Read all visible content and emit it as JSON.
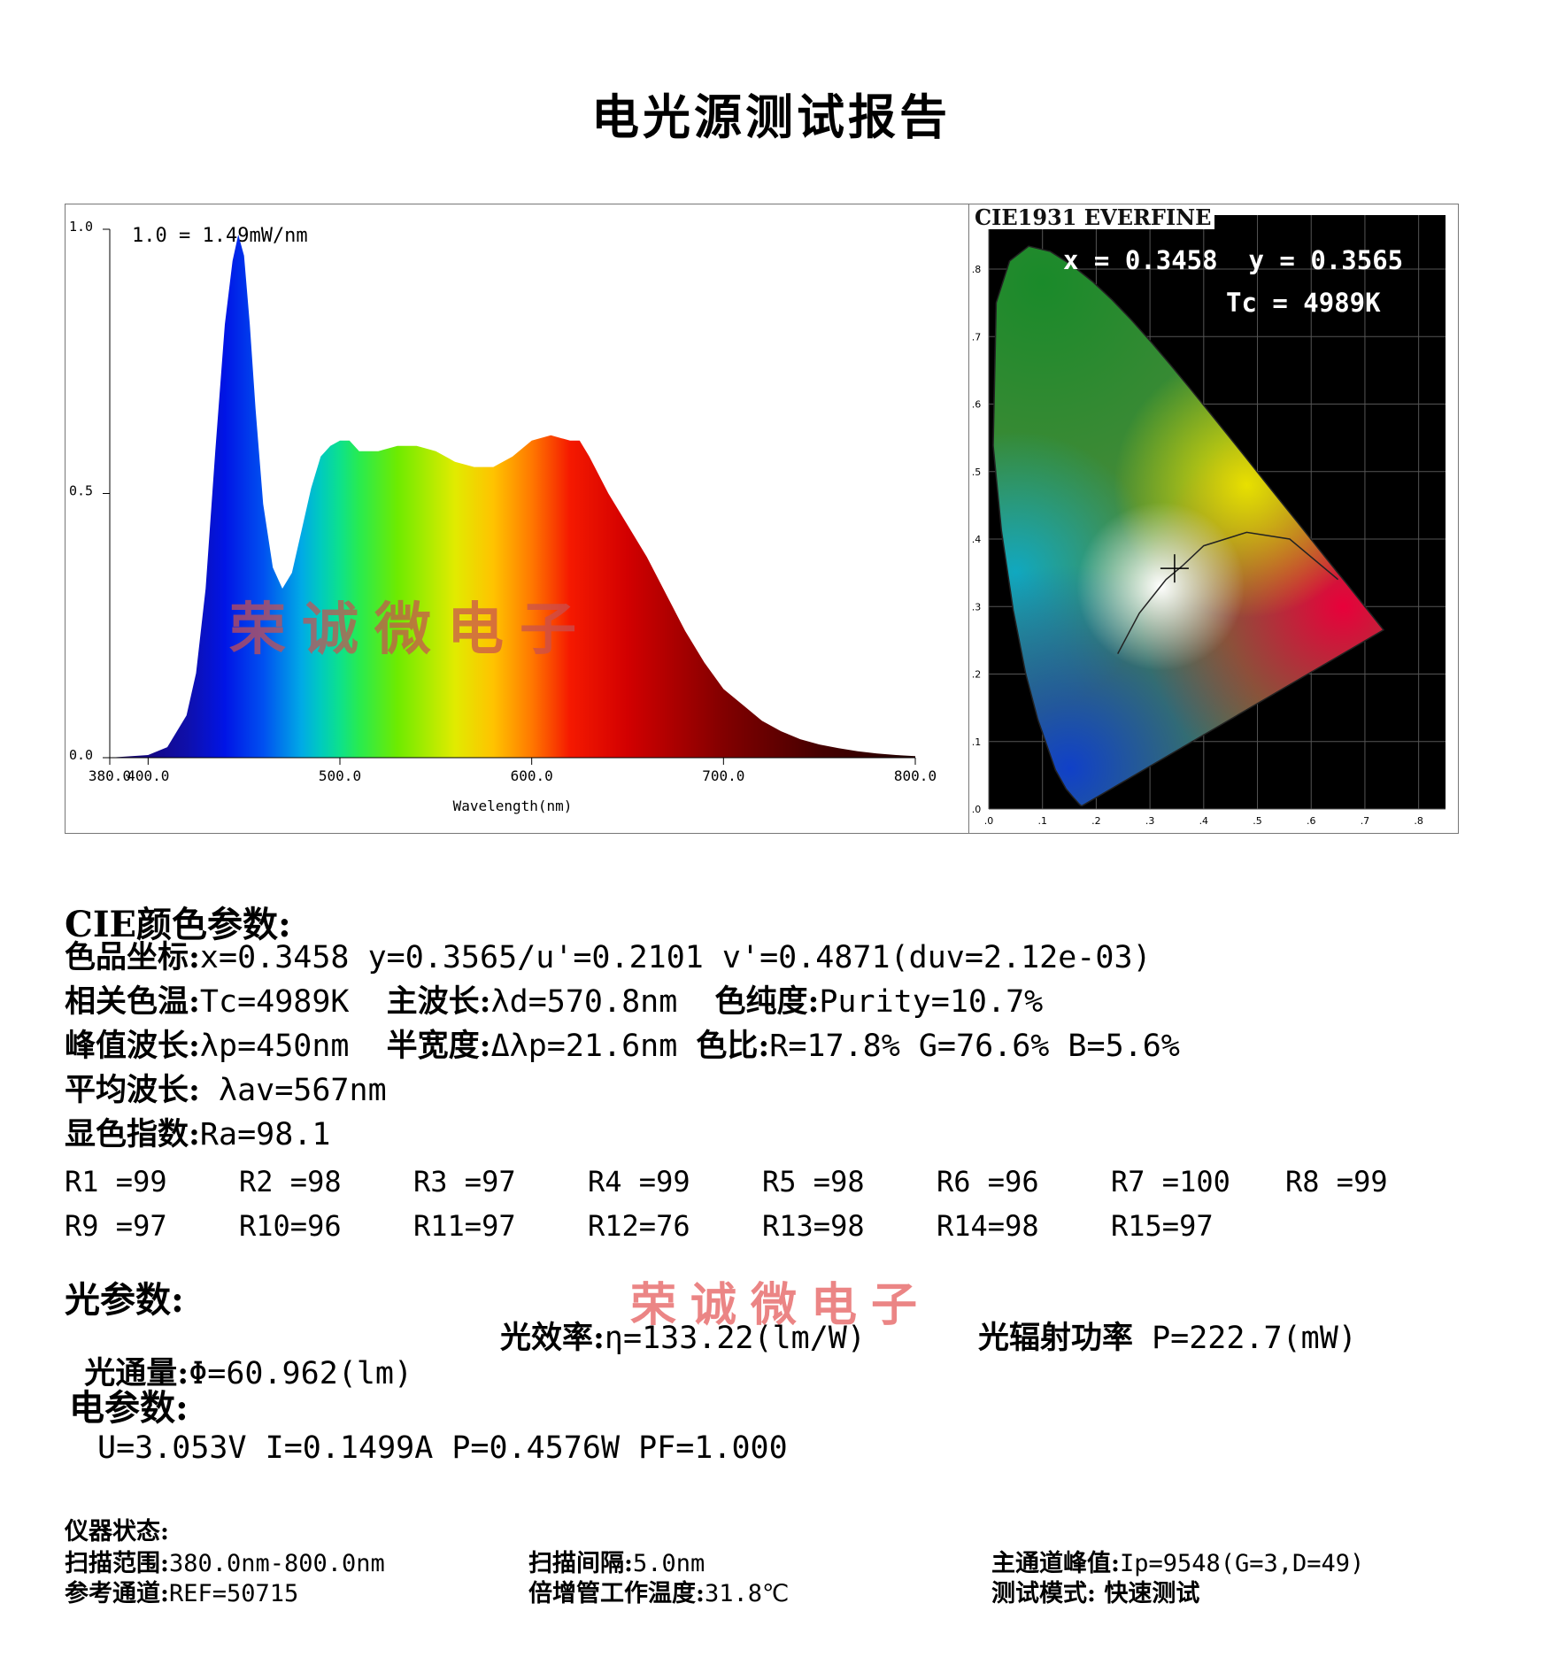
{
  "page": {
    "title": "电光源测试报告"
  },
  "spectrum": {
    "scale_note": "1.0 = 1.49mW/nm",
    "y_ticks": [
      "1.0",
      "0.5",
      "0.0"
    ],
    "x_ticks": [
      "380.0",
      "400.0",
      "500.0",
      "600.0",
      "700.0",
      "800.0"
    ],
    "xlabel": "Wavelength(nm)",
    "watermark": "荣诚微电子"
  },
  "chart_data": {
    "type": "area",
    "title": "",
    "xlabel": "Wavelength(nm)",
    "ylabel": "",
    "xlim": [
      380,
      800
    ],
    "ylim": [
      0,
      1.0
    ],
    "x": [
      380,
      400,
      410,
      420,
      425,
      430,
      435,
      440,
      444,
      447,
      450,
      453,
      456,
      460,
      465,
      470,
      475,
      480,
      485,
      490,
      495,
      500,
      505,
      510,
      520,
      530,
      540,
      550,
      560,
      570,
      580,
      590,
      600,
      610,
      620,
      625,
      630,
      640,
      650,
      660,
      670,
      680,
      690,
      700,
      710,
      720,
      730,
      740,
      750,
      760,
      770,
      780,
      790,
      800
    ],
    "y": [
      0.0,
      0.005,
      0.02,
      0.08,
      0.16,
      0.32,
      0.58,
      0.82,
      0.94,
      0.99,
      0.95,
      0.82,
      0.66,
      0.48,
      0.36,
      0.32,
      0.35,
      0.43,
      0.51,
      0.57,
      0.59,
      0.6,
      0.6,
      0.58,
      0.58,
      0.59,
      0.59,
      0.58,
      0.56,
      0.55,
      0.55,
      0.57,
      0.6,
      0.61,
      0.6,
      0.6,
      0.57,
      0.5,
      0.44,
      0.38,
      0.31,
      0.24,
      0.18,
      0.13,
      0.1,
      0.07,
      0.05,
      0.035,
      0.025,
      0.018,
      0.012,
      0.008,
      0.005,
      0.003
    ]
  },
  "cie": {
    "header": "CIE1931 EVERFINE",
    "coords": "x = 0.3458  y = 0.3565",
    "tc": "Tc = 4989K",
    "point_x": 0.3458,
    "point_y": 0.3565,
    "axis_ticks": [
      ".0",
      ".1",
      ".2",
      ".3",
      ".4",
      ".5",
      ".6",
      ".7",
      ".8"
    ]
  },
  "cie_params": {
    "heading": "CIE颜色参数:",
    "coord_label": "色品坐标:",
    "coord_value": "x=0.3458 y=0.3565/u'=0.2101 v'=0.4871(duv=2.12e-03)",
    "tc_label": "相关色温:",
    "tc_value": "Tc=4989K  ",
    "dom_label": "主波长:",
    "dom_value": "λd=570.8nm  ",
    "purity_label": "色纯度:",
    "purity_value": "Purity=10.7%",
    "peak_label": "峰值波长:",
    "peak_value": "λp=450nm  ",
    "fwhm_label": "半宽度:",
    "fwhm_value": "Δλp=21.6nm ",
    "ratio_label": "色比:",
    "ratio_value": "R=17.8% G=76.6% B=5.6%",
    "avg_label": "平均波长:",
    "avg_value": " λav=567nm",
    "ra_label": "显色指数:",
    "ra_value": "Ra=98.1",
    "r_values": [
      "R1 =99",
      "R2 =98",
      "R3 =97",
      "R4 =99",
      "R5 =98",
      "R6 =96",
      "R7 =100",
      "R8 =99",
      "R9 =97",
      "R10=96",
      "R11=97",
      "R12=76",
      "R13=98",
      "R14=98",
      "R15=97"
    ]
  },
  "light_params": {
    "heading": "光参数:",
    "watermark": "荣诚微电子",
    "flux_label": "光通量:",
    "flux_value": "Φ=60.962(lm)",
    "eff_label": "光效率:",
    "eff_value": "η=133.22(lm/W)",
    "power_label": "光辐射功率",
    "power_value": " P=222.7(mW)"
  },
  "elec_params": {
    "heading": "电参数:",
    "values": "U=3.053V I=0.1499A P=0.4576W PF=1.000"
  },
  "instrument": {
    "heading": "仪器状态:",
    "scan_range_label": "扫描范围:",
    "scan_range_value": "380.0nm-800.0nm",
    "scan_step_label": "扫描间隔:",
    "scan_step_value": "5.0nm",
    "peak_label": "主通道峰值:",
    "peak_value": "Ip=9548(G=3,D=49)",
    "ref_label": "参考通道:",
    "ref_value": "REF=50715",
    "pmt_label": "倍增管工作温度:",
    "pmt_value": "31.8℃",
    "mode_label": "测试模式:",
    "mode_value": " 快速测试"
  }
}
